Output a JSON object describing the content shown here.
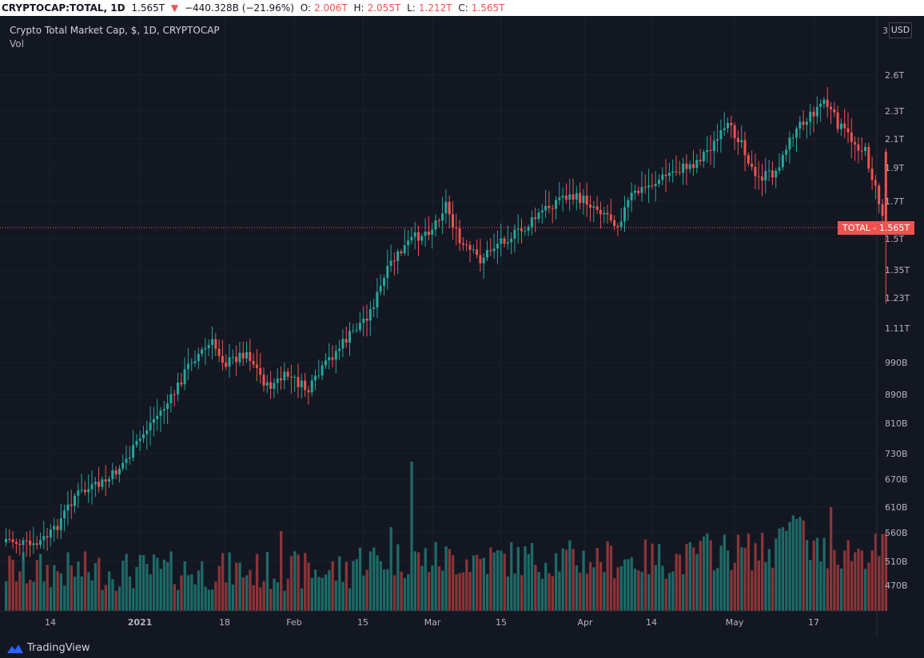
{
  "header": {
    "symbol": "CRYPTOCAP:TOTAL, 1D",
    "last": "1.565T",
    "change_arrow": "▼",
    "change": "−440.328B (−21.96%)",
    "o_label": "O:",
    "o_value": "2.006T",
    "h_label": "H:",
    "h_value": "2.055T",
    "l_label": "L:",
    "l_value": "1.212T",
    "c_label": "C:",
    "c_value": "1.565T"
  },
  "legend": {
    "title": "Crypto Total Market Cap, $, 1D, CRYPTOCAP",
    "volume": "Vol"
  },
  "price_axis": {
    "currency": "USD",
    "top_partial": "3",
    "labels": [
      "2.6T",
      "2.3T",
      "2.1T",
      "1.9T",
      "1.7T",
      "1.5T",
      "1.35T",
      "1.23T",
      "1.11T",
      "990B",
      "890B",
      "810B",
      "730B",
      "670B",
      "610B",
      "560B",
      "510B",
      "470B"
    ]
  },
  "time_axis": {
    "labels": [
      "14",
      "2021",
      "18",
      "Feb",
      "15",
      "Mar",
      "15",
      "Apr",
      "14",
      "May",
      "17"
    ]
  },
  "last_price_label": {
    "text": "TOTAL - 1.565T",
    "color": "#ef5350"
  },
  "branding": {
    "name": "TradingView",
    "icon": "tradingview-logo-icon"
  },
  "colors": {
    "up": "#26a69a",
    "down": "#ef5350",
    "bg": "#131722",
    "grid": "#1f2430"
  },
  "chart_data": {
    "type": "candlestick",
    "title": "Crypto Total Market Cap, $, 1D, CRYPTOCAP",
    "series": [
      {
        "name": "TOTAL",
        "kind": "ohlc"
      },
      {
        "name": "Vol",
        "kind": "volume"
      }
    ],
    "x_range": [
      "2020-12-07",
      "2021-05-19"
    ],
    "y_scale": "log",
    "y_range": [
      "455B",
      "3T"
    ],
    "last_close": "1.565T",
    "last_candle": {
      "open": "2.006T",
      "high": "2.055T",
      "low": "1.212T",
      "close": "1.565T"
    }
  }
}
